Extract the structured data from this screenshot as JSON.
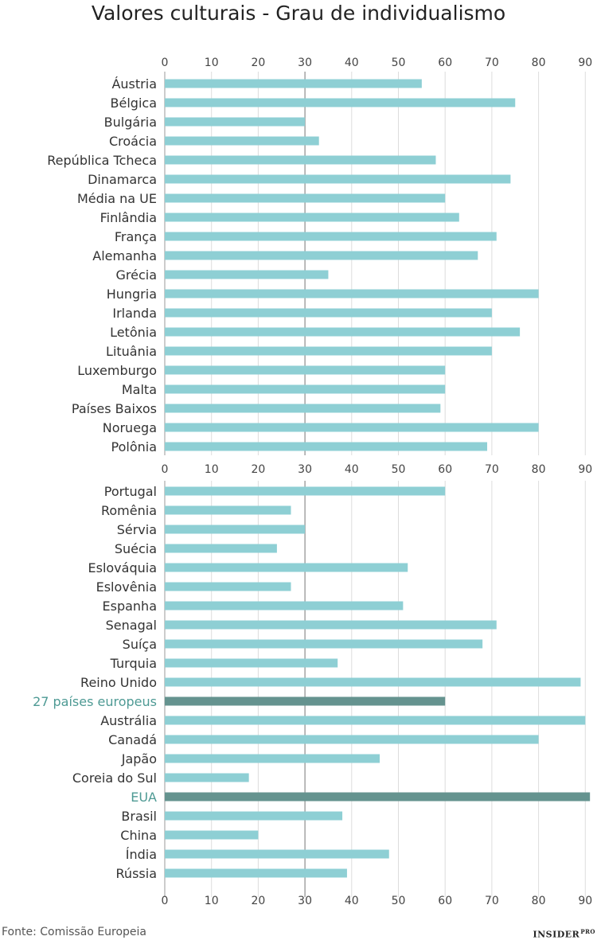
{
  "chart_data": [
    {
      "type": "bar",
      "orientation": "horizontal",
      "title": "Valores culturais - Grau de individualismo",
      "xlim": [
        0,
        90
      ],
      "ticks": [
        "0",
        "10",
        "20",
        "30",
        "40",
        "50",
        "60",
        "70",
        "80",
        "90"
      ],
      "categories": [
        "Áustria",
        "Bélgica",
        "Bulgária",
        "Croácia",
        "República Tcheca",
        "Dinamarca",
        "Média na UE",
        "Finlândia",
        "França",
        "Alemanha",
        "Grécia",
        "Hungria",
        "Irlanda",
        "Letônia",
        "Lituânia",
        "Luxemburgo",
        "Malta",
        "Países Baixos",
        "Noruega",
        "Polônia"
      ],
      "values": [
        55,
        75,
        30,
        33,
        58,
        74,
        60,
        63,
        71,
        67,
        35,
        80,
        70,
        76,
        70,
        60,
        60,
        59,
        80,
        69
      ],
      "highlight": []
    },
    {
      "type": "bar",
      "orientation": "horizontal",
      "xlim": [
        0,
        90
      ],
      "ticks": [
        "0",
        "10",
        "20",
        "30",
        "40",
        "50",
        "60",
        "70",
        "80",
        "90"
      ],
      "categories": [
        "Portugal",
        "Romênia",
        "Sérvia",
        "Suécia",
        "Eslováquia",
        "Eslovênia",
        "Espanha",
        "Senagal",
        "Suíça",
        "Turquia",
        "Reino Unido",
        "27 países europeus",
        "Austrália",
        "Canadá",
        "Japão",
        "Coreia do Sul",
        "EUA",
        "Brasil",
        "China",
        "Índia",
        "Rússia"
      ],
      "values": [
        60,
        27,
        30,
        24,
        52,
        27,
        51,
        71,
        68,
        37,
        89,
        60,
        90,
        80,
        46,
        18,
        91,
        38,
        20,
        48,
        39
      ],
      "highlight": [
        "27 países europeus",
        "EUA"
      ]
    }
  ],
  "colors": {
    "bar": "#8ecfd4",
    "highlight_bar": "#65938f",
    "highlight_label": "#4e9a94",
    "grid": "#dddddd",
    "axis": "#999999",
    "ref_line": "#8c8c8c"
  },
  "source": "Fonte: Comissão Europeia",
  "brand": "INSIDER",
  "brand_suffix": "PRO"
}
